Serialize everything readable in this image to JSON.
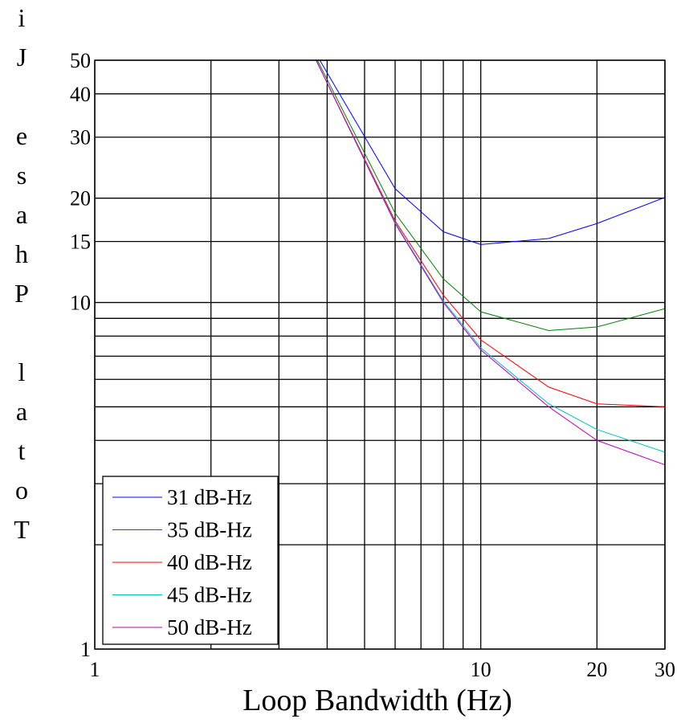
{
  "chart_data": {
    "type": "line",
    "title": "",
    "xlabel": "Loop Bandwidth (Hz)",
    "ylabel": "Total Phase Jit",
    "xscale": "log",
    "yscale": "log",
    "xlim": [
      1,
      30
    ],
    "ylim": [
      1,
      50
    ],
    "grid": true,
    "legend_position": "bottom-left",
    "x_ticks": [
      1,
      10,
      20,
      30
    ],
    "x_tick_labels": [
      "1",
      "10",
      "20",
      "30"
    ],
    "y_ticks": [
      1,
      10,
      15,
      20,
      30,
      40,
      50
    ],
    "y_tick_labels": [
      "1",
      "10",
      "15",
      "20",
      "30",
      "40",
      "50"
    ],
    "x_gridlines": [
      1,
      2,
      3,
      4,
      5,
      6,
      7,
      8,
      9,
      10,
      20,
      30
    ],
    "y_gridlines": [
      1,
      2,
      3,
      4,
      5,
      6,
      7,
      8,
      9,
      10,
      15,
      20,
      30,
      40,
      50
    ],
    "x": [
      4,
      6,
      8,
      10,
      15,
      20,
      30
    ],
    "series": [
      {
        "name": "31 dB-Hz",
        "color": "#0000ff",
        "values": [
          46,
          21.3,
          16.0,
          14.7,
          15.3,
          16.9,
          20.1
        ]
      },
      {
        "name": "35 dB-Hz",
        "color": "#008000",
        "values": [
          44,
          18.1,
          11.7,
          9.4,
          8.3,
          8.5,
          9.6
        ]
      },
      {
        "name": "40 dB-Hz",
        "color": "#ff0000",
        "values": [
          43,
          17.2,
          10.5,
          7.8,
          5.7,
          5.1,
          5.0
        ]
      },
      {
        "name": "45 dB-Hz",
        "color": "#00bfbf",
        "values": [
          43,
          17.0,
          10.1,
          7.4,
          5.1,
          4.3,
          3.7
        ]
      },
      {
        "name": "50 dB-Hz",
        "color": "#bf00bf",
        "values": [
          43,
          16.9,
          10.0,
          7.3,
          5.0,
          4.0,
          3.4
        ]
      }
    ]
  }
}
